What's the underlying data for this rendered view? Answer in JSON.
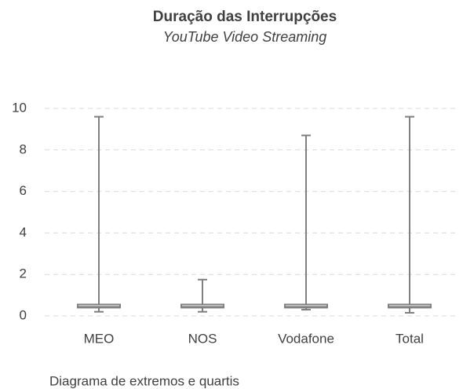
{
  "chart_data": {
    "type": "box",
    "title": "Duração das Interrupções",
    "subtitle": "YouTube Video Streaming",
    "footnote": "Diagrama de extremos e quartis",
    "categories": [
      "MEO",
      "NOS",
      "Vodafone",
      "Total"
    ],
    "min": [
      0.2,
      0.2,
      0.3,
      0.15
    ],
    "q1": [
      0.4,
      0.4,
      0.4,
      0.4
    ],
    "median": [
      0.45,
      0.45,
      0.45,
      0.45
    ],
    "q3": [
      0.55,
      0.55,
      0.55,
      0.55
    ],
    "max": [
      9.6,
      1.75,
      8.7,
      9.6
    ],
    "color": "#7f7f7f",
    "ylim": [
      0,
      10
    ],
    "yticks": [
      0,
      2,
      4,
      6,
      8,
      10
    ],
    "grid": true
  }
}
